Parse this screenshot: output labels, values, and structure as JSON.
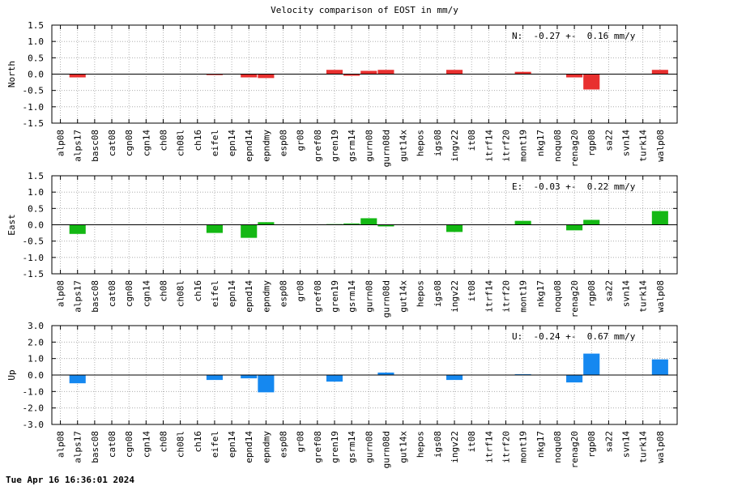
{
  "title": "Velocity comparison of EOST in mm/y",
  "timestamp": "Tue Apr 16 16:36:01 2024",
  "chart_data": [
    {
      "type": "bar",
      "ylabel": "North",
      "ylim": [
        -1.5,
        1.5
      ],
      "yticks": [
        "1.5",
        "1.0",
        "0.5",
        "0.0",
        "-0.5",
        "-1.0",
        "-1.5"
      ],
      "ytick_values": [
        1.5,
        1.0,
        0.5,
        0.0,
        -0.5,
        -1.0,
        -1.5
      ],
      "color": "#e8302f",
      "annotation": "N:  -0.27 +-  0.16 mm/y",
      "grid": true,
      "categories": [
        "alp08",
        "alps17",
        "basc08",
        "cat08",
        "cgn08",
        "cgn14",
        "ch08",
        "ch08l",
        "ch16",
        "eifel",
        "epn14",
        "epnd14",
        "epndmy",
        "esp08",
        "gr08",
        "gref08",
        "gren19",
        "gsrm14",
        "gurn08",
        "gurn08d",
        "gut14x",
        "hepos",
        "igs08",
        "ingv22",
        "it08",
        "itrf14",
        "itrf20",
        "mont19",
        "nkg17",
        "noqu08",
        "renag20",
        "rgp08",
        "sa22",
        "svn14",
        "turk14",
        "walp08"
      ],
      "values": [
        0,
        -0.1,
        0,
        0,
        0,
        0,
        0,
        0,
        0,
        -0.03,
        0,
        -0.1,
        -0.12,
        0,
        0,
        0,
        0.13,
        -0.05,
        0.1,
        0.13,
        0,
        0,
        0,
        0.13,
        0,
        0,
        0,
        0.07,
        0,
        0,
        -0.1,
        -0.47,
        0,
        0,
        0,
        0.13
      ]
    },
    {
      "type": "bar",
      "ylabel": "East",
      "ylim": [
        -1.5,
        1.5
      ],
      "yticks": [
        "1.5",
        "1.0",
        "0.5",
        "0.0",
        "-0.5",
        "-1.0",
        "-1.5"
      ],
      "ytick_values": [
        1.5,
        1.0,
        0.5,
        0.0,
        -0.5,
        -1.0,
        -1.5
      ],
      "color": "#14b814",
      "annotation": "E:  -0.03 +-  0.22 mm/y",
      "grid": true,
      "categories": [
        "alp08",
        "alps17",
        "basc08",
        "cat08",
        "cgn08",
        "cgn14",
        "ch08",
        "ch08l",
        "ch16",
        "eifel",
        "epn14",
        "epnd14",
        "epndmy",
        "esp08",
        "gr08",
        "gref08",
        "gren19",
        "gsrm14",
        "gurn08",
        "gurn08d",
        "gut14x",
        "hepos",
        "igs08",
        "ingv22",
        "it08",
        "itrf14",
        "itrf20",
        "mont19",
        "nkg17",
        "noqu08",
        "renag20",
        "rgp08",
        "sa22",
        "svn14",
        "turk14",
        "walp08"
      ],
      "values": [
        0,
        -0.28,
        0,
        0,
        0,
        0,
        0,
        0,
        0,
        -0.25,
        0,
        -0.4,
        0.08,
        0,
        0,
        0,
        0.02,
        0.04,
        0.2,
        -0.05,
        0,
        0,
        0,
        -0.22,
        0,
        0,
        0,
        0.12,
        0,
        0,
        -0.17,
        0.15,
        0,
        0,
        0,
        0.42
      ]
    },
    {
      "type": "bar",
      "ylabel": "Up",
      "ylim": [
        -3.0,
        3.0
      ],
      "yticks": [
        "3.0",
        "2.0",
        "1.0",
        "0.0",
        "-1.0",
        "-2.0",
        "-3.0"
      ],
      "ytick_values": [
        3.0,
        2.0,
        1.0,
        0.0,
        -1.0,
        -2.0,
        -3.0
      ],
      "color": "#1588f0",
      "annotation": "U:  -0.24 +-  0.67 mm/y",
      "grid": true,
      "categories": [
        "alp08",
        "alps17",
        "basc08",
        "cat08",
        "cgn08",
        "cgn14",
        "ch08",
        "ch08l",
        "ch16",
        "eifel",
        "epn14",
        "epnd14",
        "epndmy",
        "esp08",
        "gr08",
        "gref08",
        "gren19",
        "gsrm14",
        "gurn08",
        "gurn08d",
        "gut14x",
        "hepos",
        "igs08",
        "ingv22",
        "it08",
        "itrf14",
        "itrf20",
        "mont19",
        "nkg17",
        "noqu08",
        "renag20",
        "rgp08",
        "sa22",
        "svn14",
        "turk14",
        "walp08"
      ],
      "values": [
        0,
        -0.5,
        0,
        0,
        0,
        0,
        0,
        0,
        0,
        -0.3,
        0,
        -0.2,
        -1.05,
        0,
        0,
        0,
        -0.4,
        0,
        0,
        0.15,
        0,
        0,
        0,
        -0.3,
        0,
        0,
        0,
        0.05,
        0,
        0,
        -0.45,
        1.3,
        0,
        0,
        0,
        0.95
      ]
    }
  ]
}
